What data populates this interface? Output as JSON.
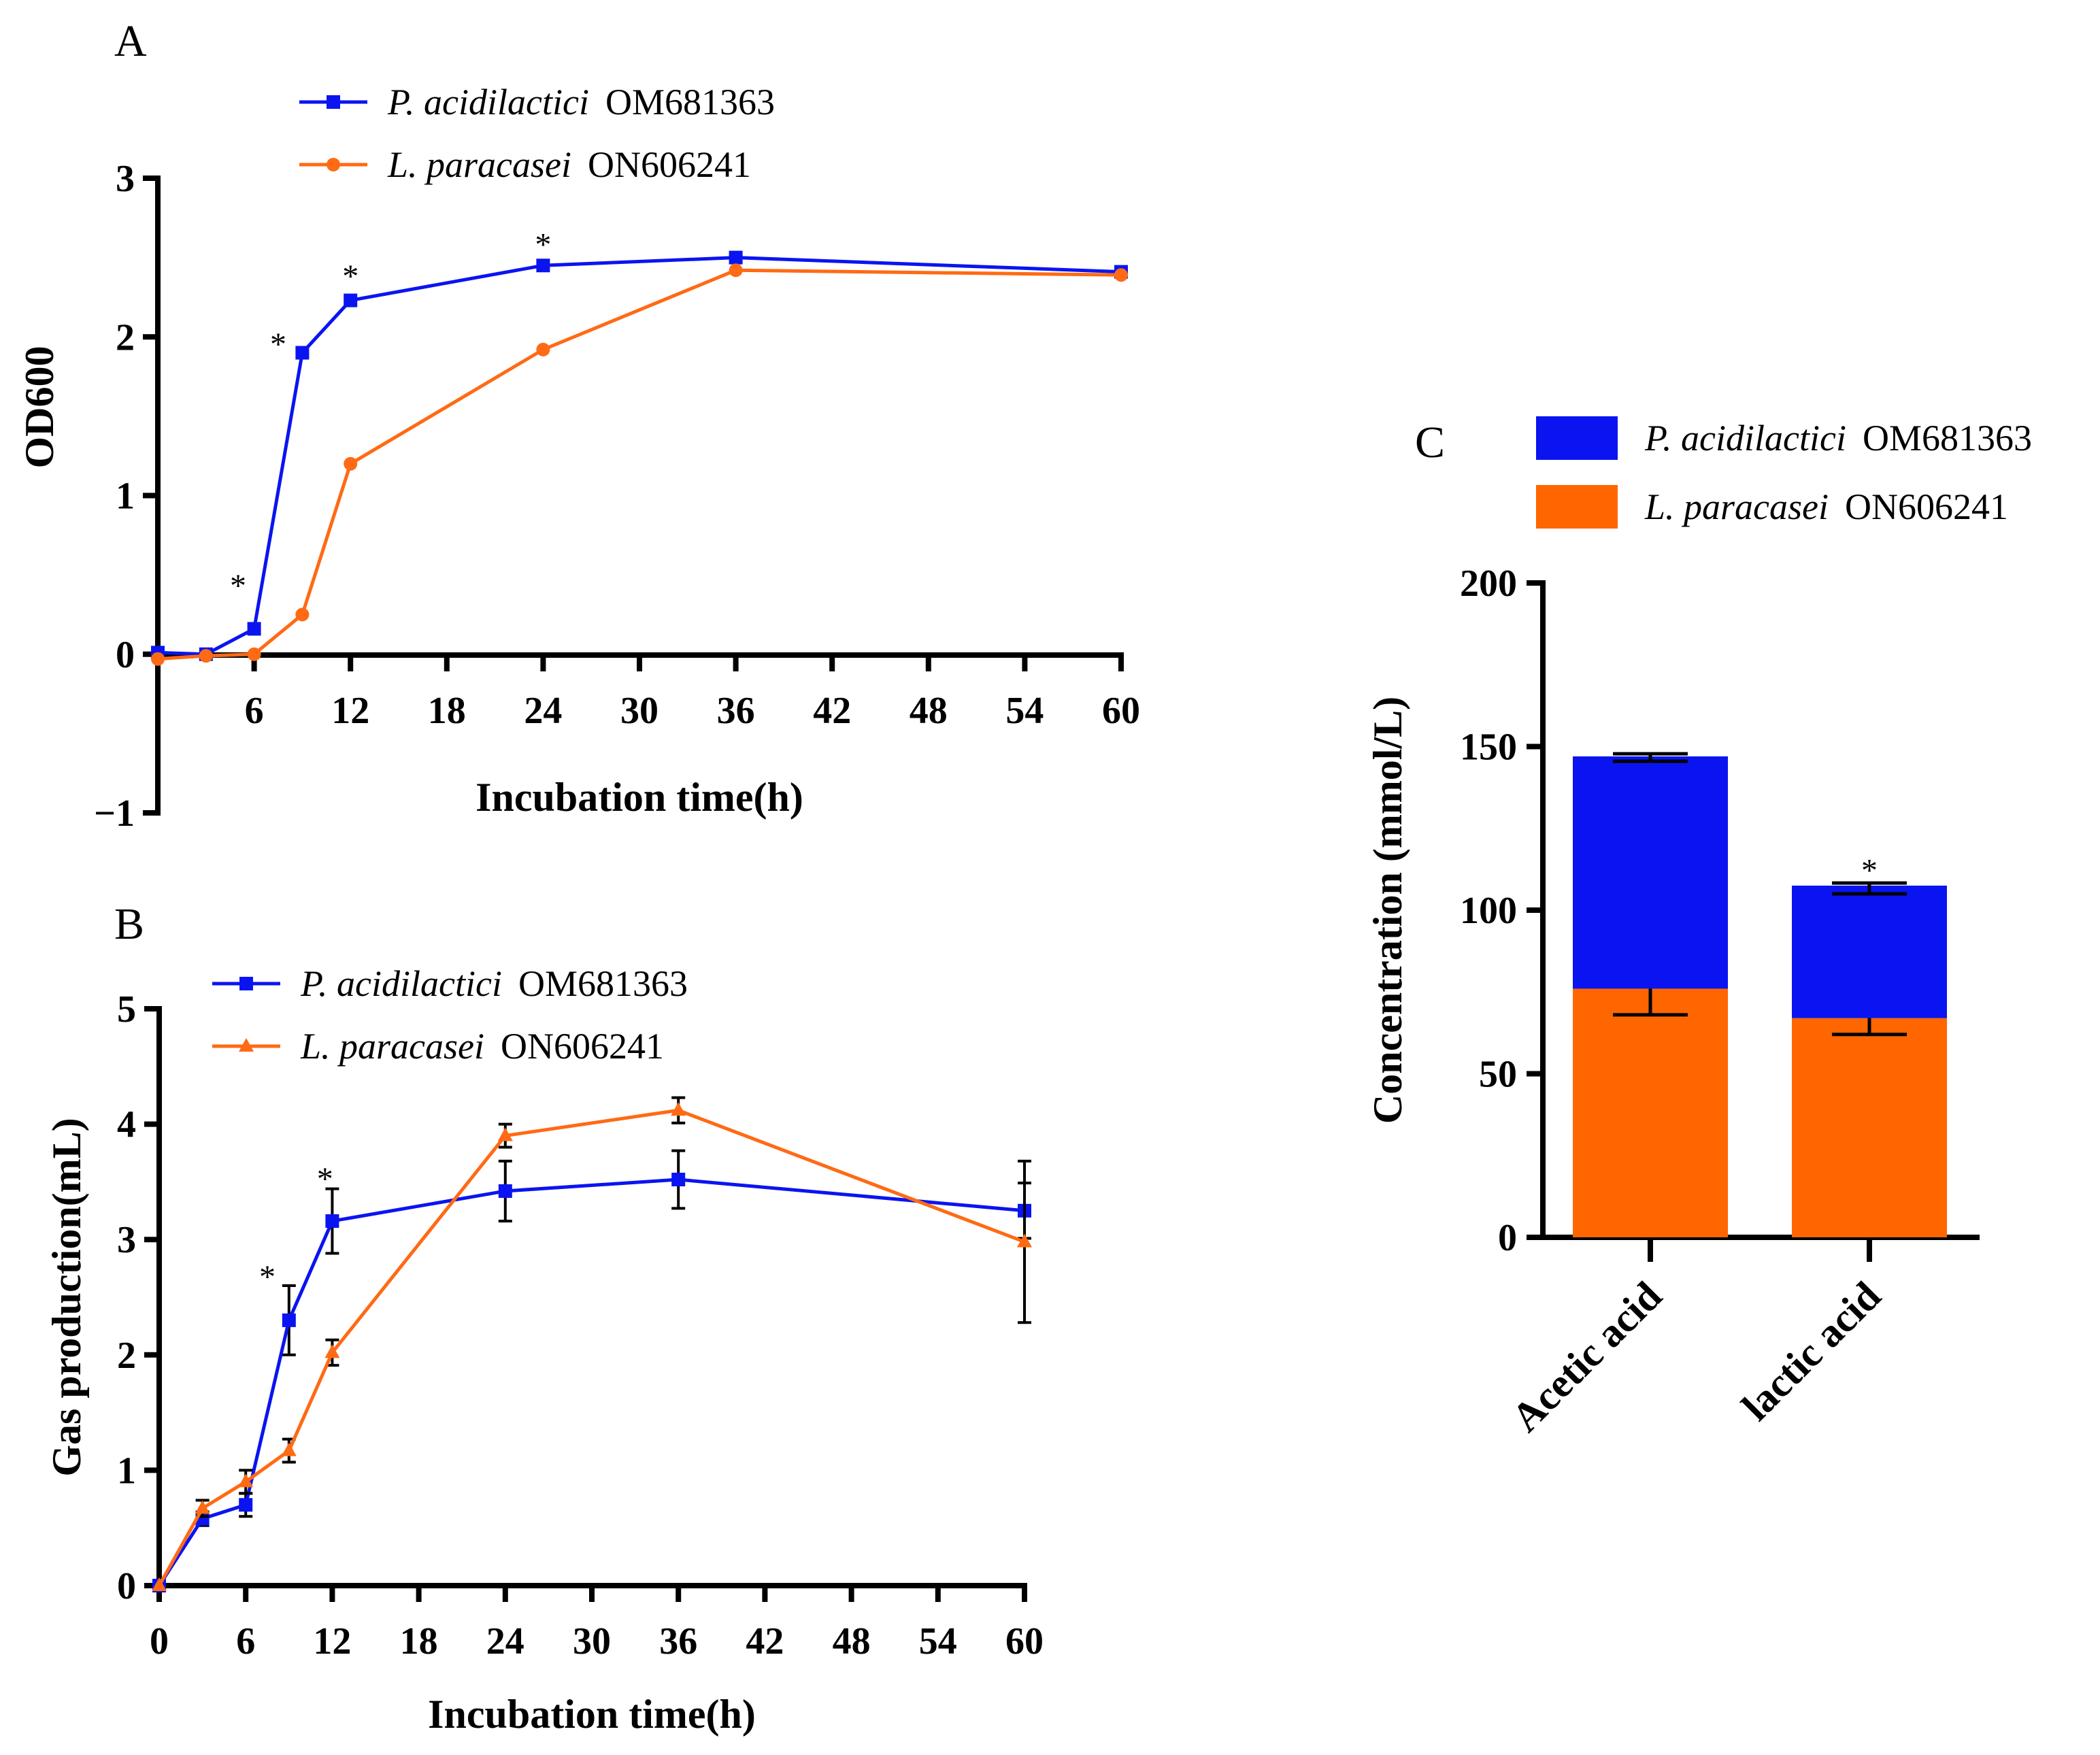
{
  "chart_data": [
    {
      "panel": "A",
      "type": "line",
      "xlabel": "Incubation time(h)",
      "ylabel": "OD600",
      "xlim": [
        0,
        60
      ],
      "ylim": [
        -1,
        3
      ],
      "xticks": [
        6,
        12,
        18,
        24,
        30,
        36,
        42,
        48,
        54,
        60
      ],
      "yticks": [
        -1,
        0,
        1,
        2,
        3
      ],
      "ytick_labels": [
        "−1",
        "0",
        "1",
        "2",
        "3"
      ],
      "legend_placement": "top-left",
      "series": [
        {
          "name_italic": "P. acidilactici",
          "name_id": "OM681363",
          "color": "#0a14f0",
          "marker": "square",
          "x": [
            0,
            3,
            6,
            9,
            12,
            24,
            36,
            60
          ],
          "y": [
            0.01,
            0.0,
            0.16,
            1.9,
            2.23,
            2.45,
            2.5,
            2.41
          ]
        },
        {
          "name_italic": "L. paracasei",
          "name_id": "ON606241",
          "color": "#ff6a14",
          "marker": "circle",
          "x": [
            0,
            3,
            6,
            9,
            12,
            24,
            36,
            60
          ],
          "y": [
            -0.03,
            -0.01,
            0.0,
            0.25,
            1.2,
            1.92,
            2.42,
            2.39
          ]
        }
      ],
      "annotations": [
        {
          "text": "*",
          "x": 5,
          "y": 0.45
        },
        {
          "text": "*",
          "x": 7.5,
          "y": 1.97
        },
        {
          "text": "*",
          "x": 12,
          "y": 2.4
        },
        {
          "text": "*",
          "x": 24,
          "y": 2.6
        }
      ]
    },
    {
      "panel": "B",
      "type": "line",
      "xlabel": "Incubation time(h)",
      "ylabel": "Gas production(mL)",
      "xlim": [
        0,
        60
      ],
      "ylim": [
        0,
        5
      ],
      "xticks": [
        0,
        6,
        12,
        18,
        24,
        30,
        36,
        42,
        48,
        54,
        60
      ],
      "yticks": [
        0,
        1,
        2,
        3,
        4,
        5
      ],
      "ytick_labels": [
        "0",
        "1",
        "2",
        "3",
        "4",
        "5"
      ],
      "legend_placement": "top-left",
      "series": [
        {
          "name_italic": "P. acidilactici",
          "name_id": "OM681363",
          "color": "#0a14f0",
          "marker": "square",
          "x": [
            0,
            3,
            6,
            9,
            12,
            24,
            36,
            60
          ],
          "y": [
            0,
            0.58,
            0.7,
            2.3,
            3.16,
            3.42,
            3.52,
            3.25
          ],
          "err": [
            0,
            0.06,
            0.1,
            0.3,
            0.28,
            0.26,
            0.25,
            0.24
          ]
        },
        {
          "name_italic": "L. paracasei",
          "name_id": "ON606241",
          "color": "#ff6a14",
          "marker": "triangle",
          "x": [
            0,
            3,
            6,
            9,
            12,
            24,
            36,
            60
          ],
          "y": [
            0,
            0.67,
            0.9,
            1.17,
            2.02,
            3.9,
            4.12,
            2.98
          ],
          "err": [
            0,
            0.07,
            0.1,
            0.1,
            0.11,
            0.1,
            0.11,
            0.7
          ]
        }
      ],
      "annotations": [
        {
          "text": "*",
          "x": 7.5,
          "y": 2.7
        },
        {
          "text": "*",
          "x": 11.5,
          "y": 3.55
        }
      ]
    },
    {
      "panel": "C",
      "type": "bar",
      "stacked": true,
      "ylabel": "Concentration (mmol/L)",
      "ylim": [
        0,
        200
      ],
      "yticks": [
        0,
        50,
        100,
        150,
        200
      ],
      "ytick_labels": [
        "0",
        "50",
        "100",
        "150",
        "200"
      ],
      "categories": [
        "Acetic acid",
        "lactic acid"
      ],
      "legend_placement": "top-right",
      "series": [
        {
          "name_italic": "L. paracasei",
          "name_id": "ON606241",
          "color": "#ff6600",
          "values": [
            76,
            67
          ],
          "err_up": [
            5,
            1.5
          ],
          "err_down": [
            8,
            5
          ]
        },
        {
          "name_italic": "P. acidilactici",
          "name_id": "OM681363",
          "color": "#0a14f0",
          "values": [
            71,
            40.5
          ],
          "err_up": [
            0.8,
            0.8
          ],
          "err_down": [
            1.5,
            2.5
          ]
        }
      ],
      "annotations": [
        {
          "text": "*",
          "category": "lactic acid",
          "y": 113
        }
      ]
    }
  ]
}
